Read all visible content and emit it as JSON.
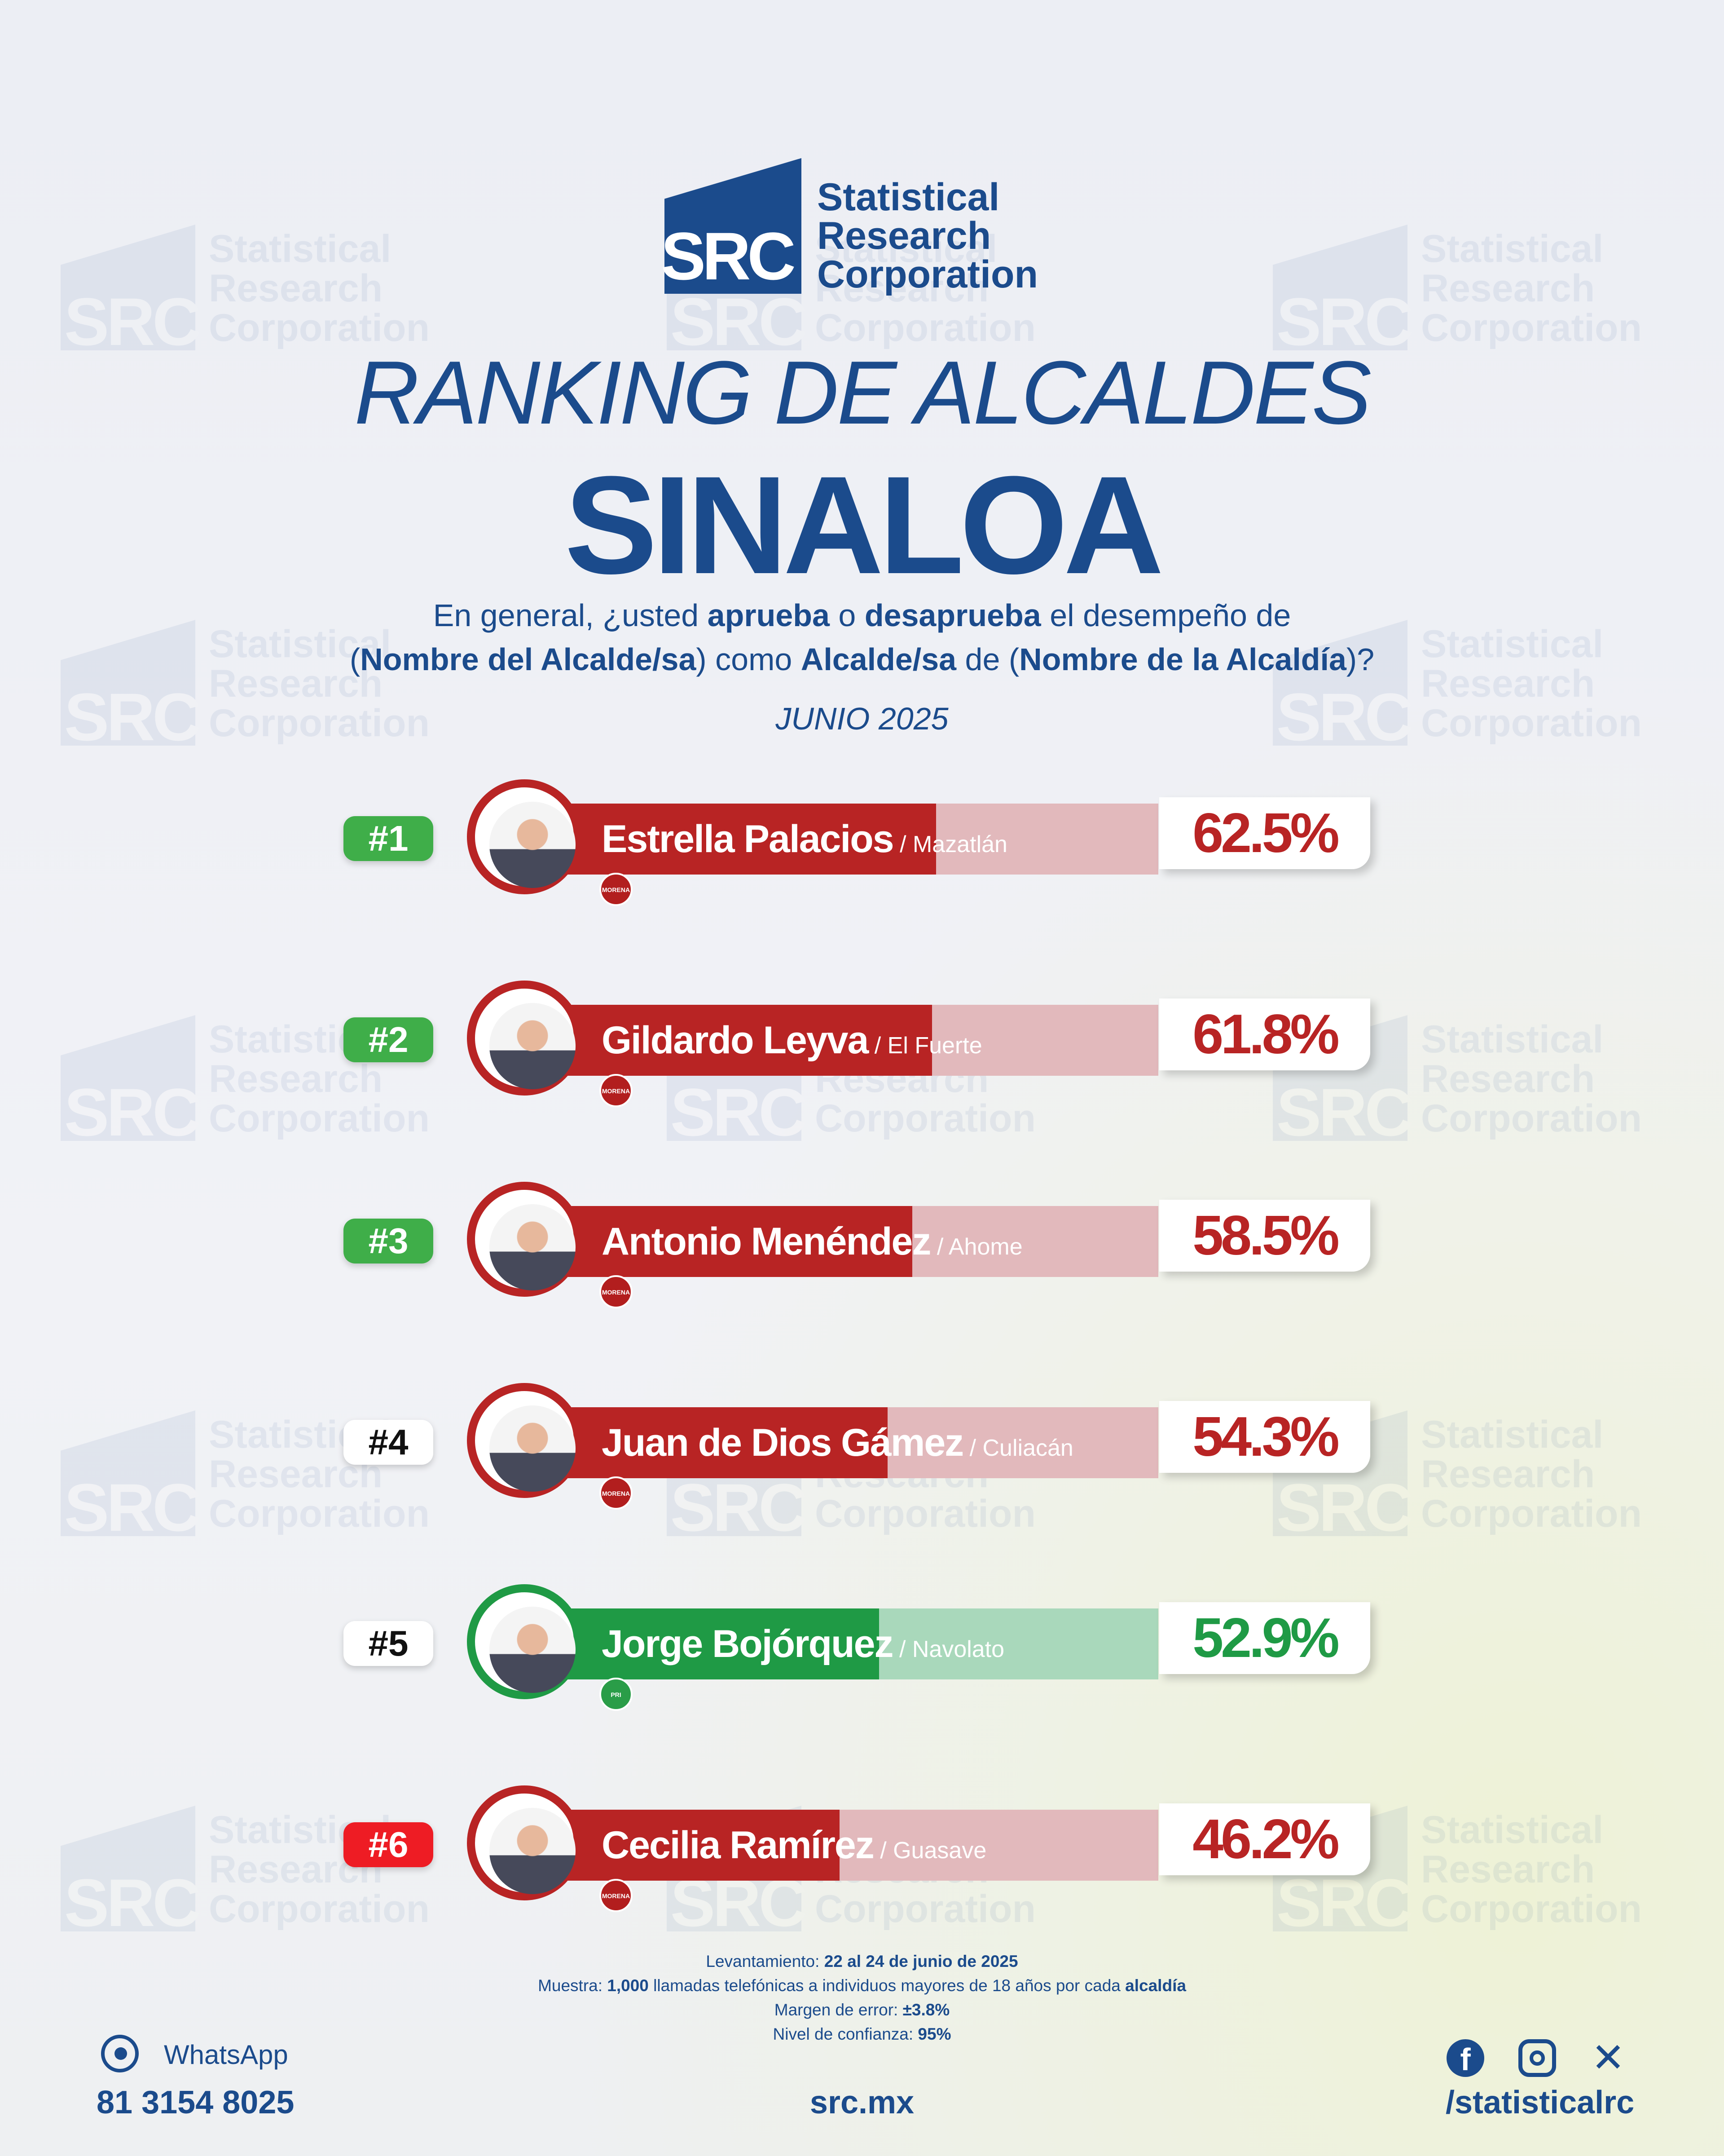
{
  "brand": {
    "logo_mark": "SRC",
    "name_lines": [
      "Statistical",
      "Research",
      "Corporation"
    ]
  },
  "title_line1": "RANKING DE ALCALDES",
  "title_line2": "SINALOA",
  "question": {
    "line1": [
      {
        "text": "En general, ¿usted ",
        "bold": false
      },
      {
        "text": "aprueba",
        "bold": true
      },
      {
        "text": " o ",
        "bold": false
      },
      {
        "text": "desaprueba",
        "bold": true
      },
      {
        "text": " el desempeño de",
        "bold": false
      }
    ],
    "line2": [
      {
        "text": "(",
        "bold": false
      },
      {
        "text": "Nombre del Alcalde/sa",
        "bold": true
      },
      {
        "text": ") como ",
        "bold": false
      },
      {
        "text": "Alcalde/sa",
        "bold": true
      },
      {
        "text": " de (",
        "bold": false
      },
      {
        "text": "Nombre de la Alcaldía",
        "bold": true
      },
      {
        "text": ")?",
        "bold": false
      }
    ]
  },
  "date": "JUNIO 2025",
  "chart_data": {
    "type": "bar",
    "categories": [
      "Estrella Palacios",
      "Gildardo Leyva",
      "Antonio Menéndez",
      "Juan de Dios Gámez",
      "Jorge Bojórquez",
      "Cecilia Ramírez"
    ],
    "values": [
      62.5,
      61.8,
      58.5,
      54.3,
      52.9,
      46.2
    ],
    "ylim": [
      0,
      100
    ],
    "rows": [
      {
        "rank": "#1",
        "name": "Estrella Palacios",
        "city": " / Mazatlán",
        "value": 62.5,
        "label": "62.5%",
        "party": "MORENA",
        "theme": "red",
        "rank_style": "green"
      },
      {
        "rank": "#2",
        "name": "Gildardo Leyva",
        "city": " / El Fuerte",
        "value": 61.8,
        "label": "61.8%",
        "party": "MORENA",
        "theme": "red",
        "rank_style": "green"
      },
      {
        "rank": "#3",
        "name": "Antonio Menéndez",
        "city": " / Ahome",
        "value": 58.5,
        "label": "58.5%",
        "party": "MORENA",
        "theme": "red",
        "rank_style": "green"
      },
      {
        "rank": "#4",
        "name": "Juan de Dios Gámez",
        "city": " / Culiacán",
        "value": 54.3,
        "label": "54.3%",
        "party": "MORENA",
        "theme": "red",
        "rank_style": "white"
      },
      {
        "rank": "#5",
        "name": "Jorge Bojórquez",
        "city": " / Navolato",
        "value": 52.9,
        "label": "52.9%",
        "party": "PRI",
        "theme": "green",
        "rank_style": "white"
      },
      {
        "rank": "#6",
        "name": "Cecilia Ramírez",
        "city": " / Guasave",
        "value": 46.2,
        "label": "46.2%",
        "party": "MORENA",
        "theme": "red",
        "rank_style": "red"
      }
    ]
  },
  "colors": {
    "brand_blue": "#1b4b8c",
    "red": "#b82424",
    "red_light": "#e2b9bc",
    "green": "#1f9a45",
    "green_light": "#a9d8bb",
    "rank_green": "#3fae49",
    "rank_red": "#ee1c24"
  },
  "methodology": {
    "line1": [
      {
        "text": "Levantamiento: ",
        "bold": false
      },
      {
        "text": "22 al 24 de junio de 2025",
        "bold": true
      }
    ],
    "line2": [
      {
        "text": "Muestra: ",
        "bold": false
      },
      {
        "text": "1,000",
        "bold": true
      },
      {
        "text": " llamadas telefónicas a individuos mayores de 18 años por cada ",
        "bold": false
      },
      {
        "text": "alcaldía",
        "bold": true
      }
    ],
    "line3": [
      {
        "text": "Margen de error: ",
        "bold": false
      },
      {
        "text": "±3.8%",
        "bold": true
      }
    ],
    "line4": [
      {
        "text": "Nivel de confianza: ",
        "bold": false
      },
      {
        "text": "95%",
        "bold": true
      }
    ]
  },
  "footer": {
    "whatsapp_label": "WhatsApp",
    "phone": "81 3154 8025",
    "website": "src.mx",
    "handle": "/statisticalrc",
    "icons": [
      "whatsapp-icon",
      "facebook-icon",
      "instagram-icon",
      "x-icon"
    ]
  }
}
